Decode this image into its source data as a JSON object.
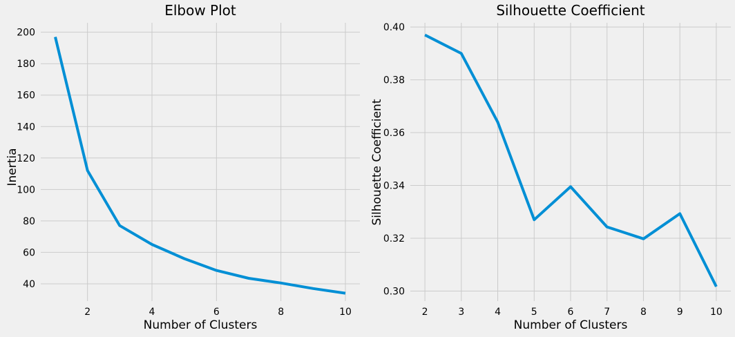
{
  "chart_data": [
    {
      "type": "line",
      "title": "Elbow Plot",
      "xlabel": "Number of Clusters",
      "ylabel": "Inertia",
      "xlim": [
        0.55,
        10.45
      ],
      "ylim": [
        29,
        206
      ],
      "xticks": [
        2,
        4,
        6,
        8,
        10
      ],
      "yticks": [
        40,
        60,
        80,
        100,
        120,
        140,
        160,
        180,
        200
      ],
      "tick_decimals": 0,
      "grid": true,
      "color": "#008fd5",
      "series": [
        {
          "x": [
            1,
            2,
            3,
            4,
            5,
            6,
            7,
            8,
            9,
            10
          ],
          "values": [
            197,
            112,
            77,
            65,
            56,
            48.5,
            43.5,
            40.5,
            37,
            34
          ]
        }
      ]
    },
    {
      "type": "line",
      "title": "Silhouette Coefficient",
      "xlabel": "Number of Clusters",
      "ylabel": "Silhouette Coefficient",
      "xlim": [
        1.6,
        10.4
      ],
      "ylim": [
        0.2962,
        0.4016
      ],
      "xticks": [
        2,
        3,
        4,
        5,
        6,
        7,
        8,
        9,
        10
      ],
      "yticks": [
        0.3,
        0.32,
        0.34,
        0.36,
        0.38,
        0.4
      ],
      "tick_decimals": 2,
      "grid": true,
      "color": "#008fd5",
      "series": [
        {
          "x": [
            2,
            3,
            4,
            5,
            6,
            7,
            8,
            9,
            10
          ],
          "values": [
            0.397,
            0.39,
            0.364,
            0.327,
            0.3395,
            0.3243,
            0.3198,
            0.3293,
            0.3017
          ]
        }
      ]
    }
  ]
}
